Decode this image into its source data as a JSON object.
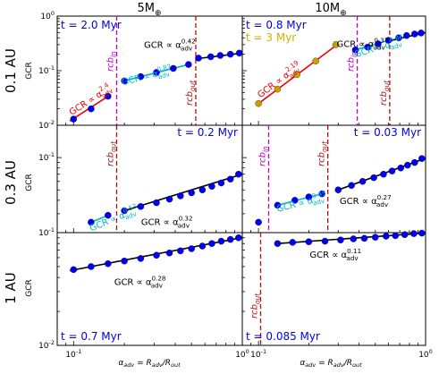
{
  "chart_data": [
    {
      "type": "scatter",
      "row": 0,
      "col": 0,
      "title": "5M⊕",
      "row_label": "0.1 AU",
      "ylabel": "GCR",
      "yscale": "log",
      "ylim": [
        0.01,
        1
      ],
      "xscale": "log",
      "xlim": [
        0.08,
        1.0
      ],
      "time_labels": [
        {
          "text": "t = 2.0 Myr",
          "color": "#0000ee"
        }
      ],
      "series": [
        {
          "color": "#0000ee",
          "x": [
            0.1,
            0.127,
            0.16
          ],
          "y": [
            0.013,
            0.02,
            0.034
          ]
        },
        {
          "color": "#0000ee",
          "x": [
            0.2,
            0.25,
            0.31,
            0.39,
            0.48
          ],
          "y": [
            0.065,
            0.078,
            0.093,
            0.11,
            0.13
          ]
        },
        {
          "color": "#0000ee",
          "x": [
            0.55,
            0.65,
            0.74,
            0.85,
            0.96
          ],
          "y": [
            0.17,
            0.18,
            0.19,
            0.2,
            0.21
          ]
        }
      ],
      "fits": [
        {
          "color": "#ee0000",
          "x": [
            0.095,
            0.165
          ],
          "y": [
            0.012,
            0.036
          ],
          "label": "GCR ∝ α_adv^2.4"
        },
        {
          "color": "#00b4d0",
          "x": [
            0.195,
            0.48
          ],
          "y": [
            0.064,
            0.13
          ],
          "label": "GCR ∝ α_adv^0.87"
        },
        {
          "color": "#000000",
          "x": [
            0.53,
            1.0
          ],
          "y": [
            0.165,
            0.21
          ],
          "label": "GCR ∝ α_adv^0.42"
        }
      ],
      "vlines": [
        {
          "x": 0.18,
          "color": "#c000c0",
          "label": "rcb_in"
        },
        {
          "x": 0.53,
          "color": "#aa1111",
          "label": "rcb_out"
        }
      ]
    },
    {
      "type": "scatter",
      "row": 0,
      "col": 1,
      "title": "10M⊕",
      "yscale": "log",
      "ylim": [
        0.01,
        1
      ],
      "xscale": "log",
      "xlim": [
        0.08,
        1.0
      ],
      "time_labels": [
        {
          "text": "t = 0.8 Myr",
          "color": "#0000ee"
        },
        {
          "text": "t = 3 Myr",
          "color": "#c8b400"
        }
      ],
      "series": [
        {
          "color": "#c8a000",
          "x": [
            0.1,
            0.13,
            0.17,
            0.22,
            0.29
          ],
          "y": [
            0.025,
            0.046,
            0.085,
            0.15,
            0.3
          ]
        },
        {
          "color": "#0000ee",
          "x": [
            0.38,
            0.45,
            0.52,
            0.6,
            0.69,
            0.77,
            0.86,
            0.94
          ],
          "y": [
            0.24,
            0.27,
            0.31,
            0.36,
            0.4,
            0.44,
            0.47,
            0.49
          ]
        }
      ],
      "fits": [
        {
          "color": "#ee0000",
          "x": [
            0.1,
            0.3
          ],
          "y": [
            0.025,
            0.31
          ],
          "label": "GCR ∝ α_adv^2.19"
        },
        {
          "color": "#00b4d0",
          "x": [
            0.38,
            0.62
          ],
          "y": [
            0.24,
            0.37
          ],
          "label": "GCR ∝ α_adv^0.86"
        },
        {
          "color": "#000000",
          "x": [
            0.6,
            1.0
          ],
          "y": [
            0.35,
            0.5
          ],
          "label": "GCR ∝ α_adv^0.37"
        }
      ],
      "vlines": [
        {
          "x": 0.39,
          "color": "#c000c0",
          "label": "rcb_in"
        },
        {
          "x": 0.61,
          "color": "#aa1111",
          "label": "rcb_out"
        }
      ]
    },
    {
      "type": "scatter",
      "row": 1,
      "col": 0,
      "row_label": "0.3 AU",
      "ylabel": "GCR",
      "yscale": "log",
      "ylim": [
        0.02,
        0.2
      ],
      "xscale": "log",
      "xlim": [
        0.08,
        1.0
      ],
      "time_labels": [
        {
          "text": "t = 0.2 Myr",
          "color": "#0000ee"
        }
      ],
      "series": [
        {
          "color": "#0000ee",
          "x": [
            0.127,
            0.16
          ],
          "y": [
            0.025,
            0.029
          ]
        },
        {
          "color": "#0000ee",
          "x": [
            0.2,
            0.25,
            0.31,
            0.37,
            0.43,
            0.5,
            0.58,
            0.66,
            0.75,
            0.85,
            0.95
          ],
          "y": [
            0.032,
            0.035,
            0.038,
            0.041,
            0.044,
            0.047,
            0.05,
            0.054,
            0.058,
            0.063,
            0.07
          ]
        }
      ],
      "fits": [
        {
          "color": "#00b4d0",
          "x": [
            0.127,
            0.16
          ],
          "y": [
            0.025,
            0.029
          ],
          "label": "GCR ∝ α_adv^0.53"
        },
        {
          "color": "#000000",
          "x": [
            0.2,
            0.97
          ],
          "y": [
            0.032,
            0.069
          ],
          "label": "GCR ∝ α_adv^0.32"
        }
      ],
      "vlines": [
        {
          "x": 0.18,
          "color": "#aa1111",
          "label": "rcb_out"
        }
      ]
    },
    {
      "type": "scatter",
      "row": 1,
      "col": 1,
      "yscale": "log",
      "ylim": [
        0.02,
        0.2
      ],
      "xscale": "log",
      "xlim": [
        0.08,
        1.0
      ],
      "time_labels": [
        {
          "text": "t = 0.03 Myr",
          "color": "#0000ee"
        }
      ],
      "series": [
        {
          "color": "#0000ee",
          "x": [
            0.1
          ],
          "y": [
            0.025
          ]
        },
        {
          "color": "#0000ee",
          "x": [
            0.13,
            0.165,
            0.2,
            0.24
          ],
          "y": [
            0.036,
            0.04,
            0.043,
            0.046
          ]
        },
        {
          "color": "#0000ee",
          "x": [
            0.3,
            0.36,
            0.42,
            0.49,
            0.56,
            0.63,
            0.71,
            0.78,
            0.86,
            0.95
          ],
          "y": [
            0.05,
            0.055,
            0.06,
            0.065,
            0.07,
            0.075,
            0.08,
            0.085,
            0.09,
            0.098
          ]
        }
      ],
      "fits": [
        {
          "color": "#00b4d0",
          "x": [
            0.13,
            0.24
          ],
          "y": [
            0.036,
            0.046
          ],
          "label": "GCR ∝ α_adv^0.45"
        },
        {
          "color": "#000000",
          "x": [
            0.3,
            0.97
          ],
          "y": [
            0.05,
            0.097
          ],
          "label": "GCR ∝ α_adv^0.27"
        }
      ],
      "vlines": [
        {
          "x": 0.115,
          "color": "#c000c0",
          "label": "rcb_in"
        },
        {
          "x": 0.26,
          "color": "#aa1111",
          "label": "rcb_out"
        }
      ]
    },
    {
      "type": "scatter",
      "row": 2,
      "col": 0,
      "row_label": "1 AU",
      "ylabel": "GCR",
      "xlabel": "α_adv = R_adv/R_out",
      "yscale": "log",
      "ylim": [
        0.01,
        0.1
      ],
      "xscale": "log",
      "xlim": [
        0.08,
        1.0
      ],
      "time_labels": [
        {
          "text": "t = 0.7 Myr",
          "color": "#0000ee"
        }
      ],
      "series": [
        {
          "color": "#0000ee",
          "x": [
            0.1,
            0.127,
            0.16,
            0.2,
            0.25,
            0.31,
            0.37,
            0.43,
            0.5,
            0.58,
            0.66,
            0.75,
            0.85,
            0.95
          ],
          "y": [
            0.047,
            0.05,
            0.053,
            0.056,
            0.059,
            0.063,
            0.066,
            0.069,
            0.072,
            0.076,
            0.08,
            0.084,
            0.087,
            0.09
          ]
        }
      ],
      "fits": [
        {
          "color": "#000000",
          "x": [
            0.095,
            0.98
          ],
          "y": [
            0.046,
            0.09
          ],
          "label": "GCR ∝ α_adv^0.28"
        }
      ],
      "vlines": []
    },
    {
      "type": "scatter",
      "row": 2,
      "col": 1,
      "xlabel": "α_adv = R_adv/R_out",
      "yscale": "log",
      "ylim": [
        0.01,
        0.1
      ],
      "xscale": "log",
      "xlim": [
        0.08,
        1.0
      ],
      "time_labels": [
        {
          "text": "t = 0.085 Myr",
          "color": "#0000ee"
        }
      ],
      "series": [
        {
          "color": "#0000ee",
          "x": [
            0.13,
            0.16,
            0.2,
            0.25,
            0.31,
            0.37,
            0.43,
            0.5,
            0.58,
            0.66,
            0.75,
            0.85,
            0.95
          ],
          "y": [
            0.08,
            0.082,
            0.083,
            0.084,
            0.086,
            0.088,
            0.089,
            0.091,
            0.093,
            0.094,
            0.096,
            0.098,
            0.099
          ]
        }
      ],
      "fits": [
        {
          "color": "#000000",
          "x": [
            0.13,
            0.98
          ],
          "y": [
            0.08,
            0.099
          ],
          "label": "GCR ∝ α_adv^0.11"
        }
      ],
      "vlines": [
        {
          "x": 0.103,
          "color": "#aa1111",
          "label": "rcb_out"
        }
      ]
    }
  ],
  "text": {
    "col0_title": "5M⊕",
    "col1_title": "10M⊕",
    "row0_label": "0.1 AU",
    "row1_label": "0.3 AU",
    "row2_label": "1 AU",
    "ylabel": "GCR",
    "xlabel": "α_adv = R_adv/R_out"
  }
}
